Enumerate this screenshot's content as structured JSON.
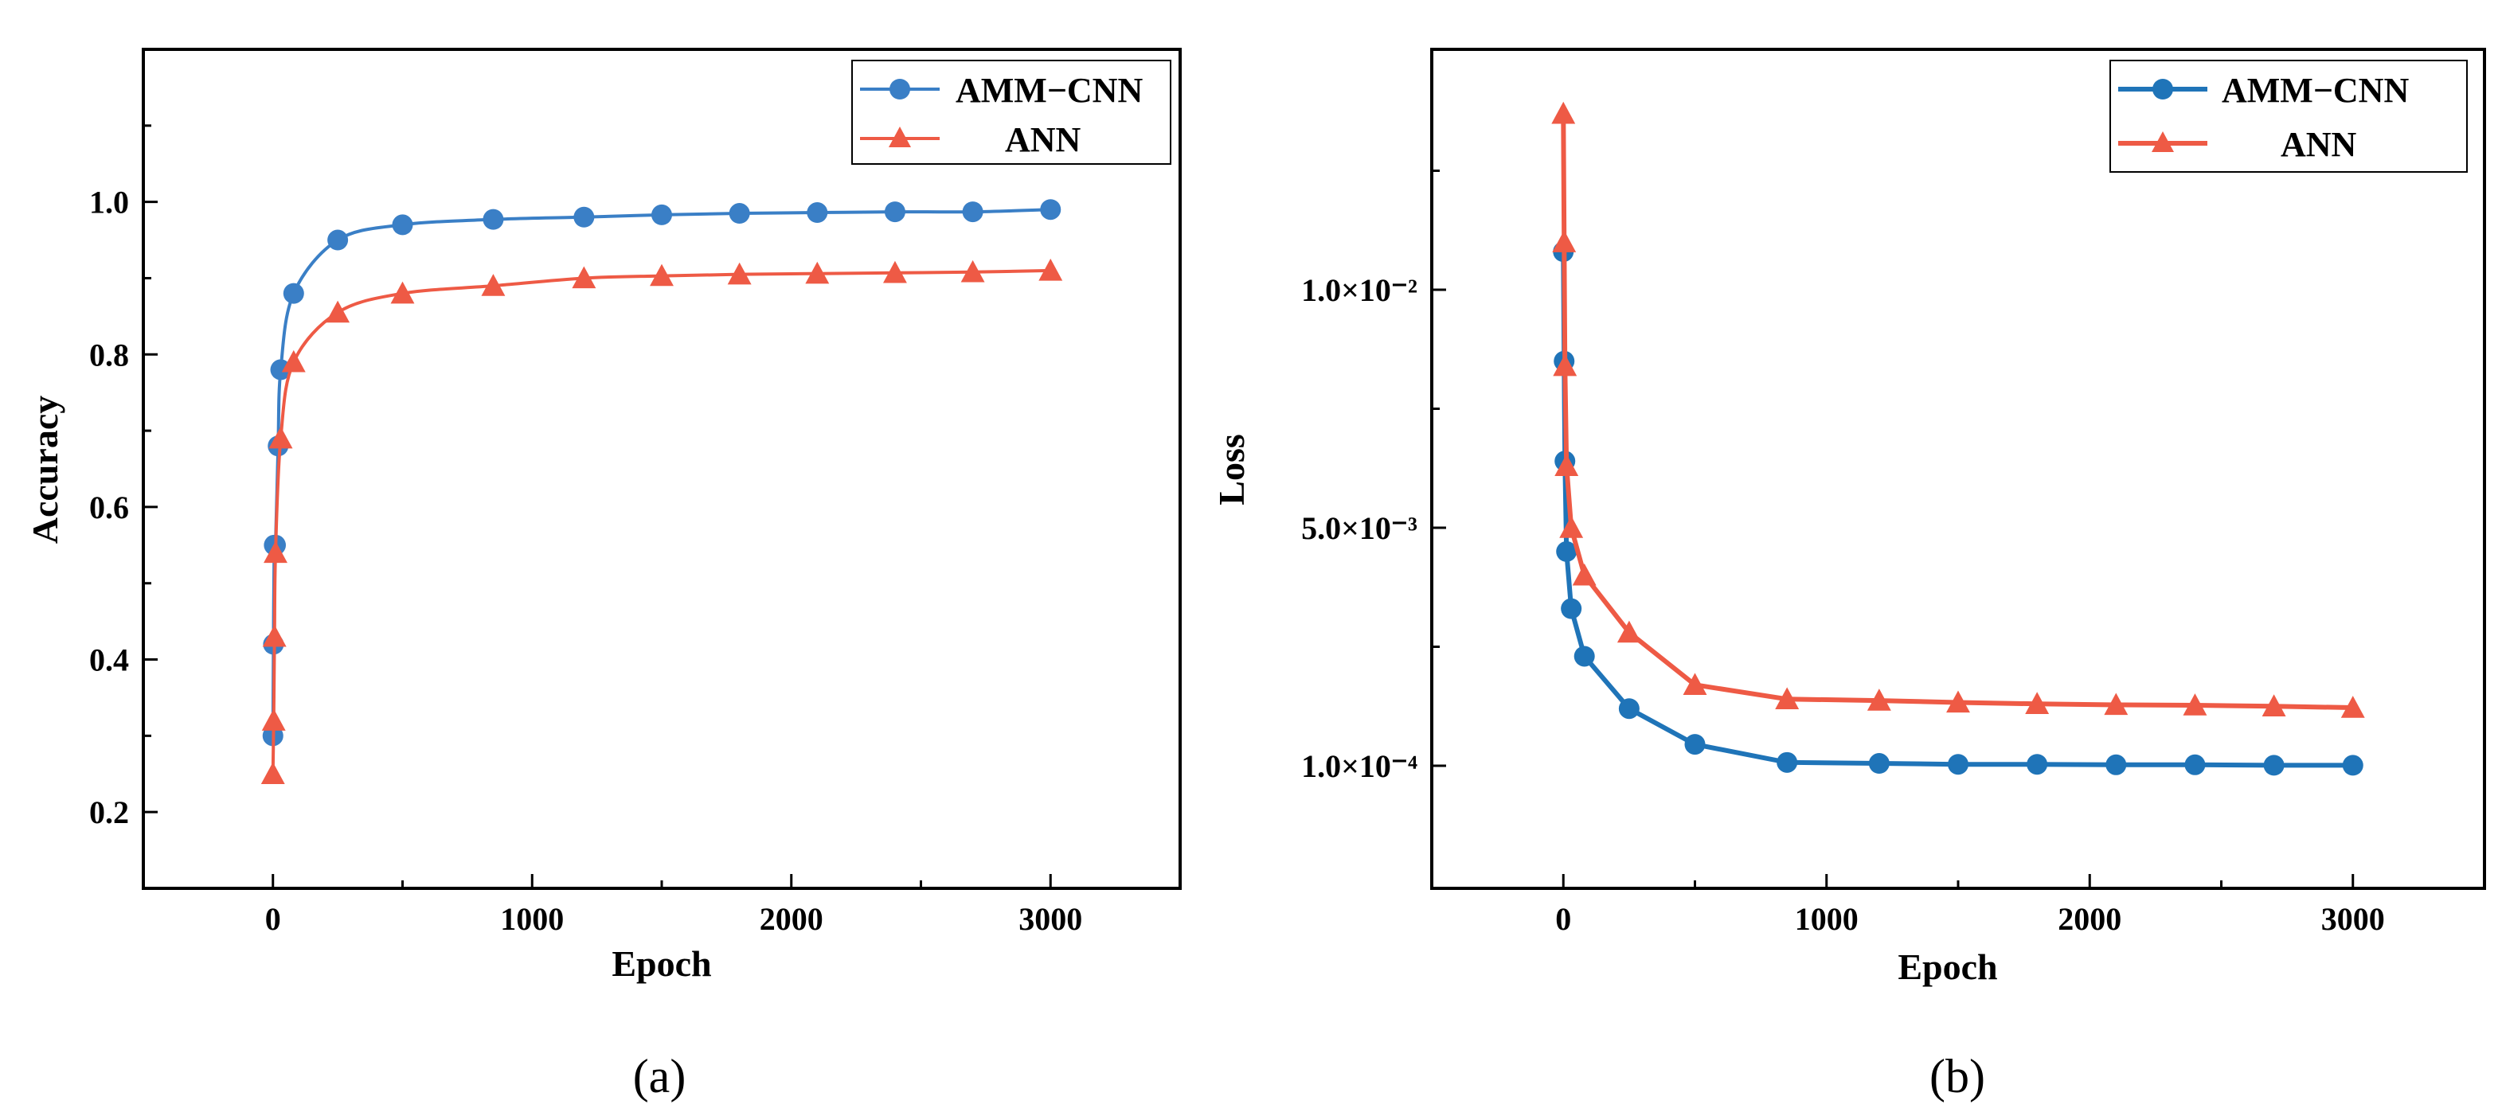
{
  "colors": {
    "amm_cnn": "#3a7fc6",
    "ann": "#ee5a45",
    "amm_cnn_b": "#1f74b8"
  },
  "chart_data": [
    {
      "type": "line",
      "panel_label": "(a)",
      "xlabel": "Epoch",
      "ylabel": "Accuracy",
      "xlim": [
        -500,
        3500
      ],
      "ylim": [
        0.1,
        1.2
      ],
      "xticks": [
        0,
        1000,
        2000,
        3000
      ],
      "xtick_labels": [
        "0",
        "1000",
        "2000",
        "3000"
      ],
      "yticks": [
        0.2,
        0.4,
        0.6,
        0.8,
        1.0
      ],
      "ytick_labels": [
        "0.2",
        "0.4",
        "0.6",
        "0.8",
        "1.0"
      ],
      "legend": "top-right",
      "series": [
        {
          "name": "AMM−CNN",
          "marker": "circle",
          "x": [
            0,
            2,
            5,
            10,
            20,
            30,
            80,
            250,
            500,
            850,
            1200,
            1500,
            1800,
            2100,
            2400,
            2700,
            3000
          ],
          "y": [
            0.3,
            0.42,
            0.55,
            0.55,
            0.68,
            0.78,
            0.88,
            0.95,
            0.97,
            0.977,
            0.98,
            0.983,
            0.985,
            0.986,
            0.987,
            0.987,
            0.99
          ]
        },
        {
          "name": "ANN",
          "marker": "triangle",
          "x": [
            0,
            3,
            6,
            10,
            30,
            80,
            250,
            500,
            850,
            1200,
            1500,
            1800,
            2100,
            2400,
            2700,
            3000
          ],
          "y": [
            0.25,
            0.32,
            0.43,
            0.54,
            0.69,
            0.79,
            0.855,
            0.88,
            0.89,
            0.9,
            0.903,
            0.905,
            0.906,
            0.907,
            0.908,
            0.91
          ]
        }
      ]
    },
    {
      "type": "line",
      "panel_label": "(b)",
      "xlabel": "Epoch",
      "ylabel": "Loss",
      "xlim": [
        -500,
        3500
      ],
      "xticks": [
        0,
        1000,
        2000,
        3000
      ],
      "xtick_labels": [
        "0",
        "1000",
        "2000",
        "3000"
      ],
      "ytick_labels": [
        "1.0×10⁻²",
        "5.0×10⁻³",
        "1.0×10⁻⁴"
      ],
      "legend": "top-right",
      "series": [
        {
          "name": "AMM−CNN",
          "marker": "circle",
          "x": [
            0,
            3,
            6,
            12,
            30,
            80,
            250,
            500,
            850,
            1200,
            1500,
            1800,
            2100,
            2400,
            2700,
            3000
          ],
          "level": [
            1.08,
            0.85,
            0.64,
            0.45,
            0.33,
            0.23,
            0.12,
            0.045,
            0.007,
            0.005,
            0.003,
            0.003,
            0.002,
            0.002,
            0.001,
            0.001
          ]
        },
        {
          "name": "ANN",
          "marker": "triangle",
          "x": [
            0,
            3,
            6,
            12,
            30,
            80,
            250,
            500,
            850,
            1200,
            1500,
            1800,
            2100,
            2400,
            2700,
            3000
          ],
          "level": [
            1.37,
            1.1,
            0.84,
            0.63,
            0.5,
            0.4,
            0.28,
            0.17,
            0.14,
            0.137,
            0.133,
            0.13,
            0.128,
            0.127,
            0.125,
            0.122
          ]
        }
      ]
    }
  ]
}
